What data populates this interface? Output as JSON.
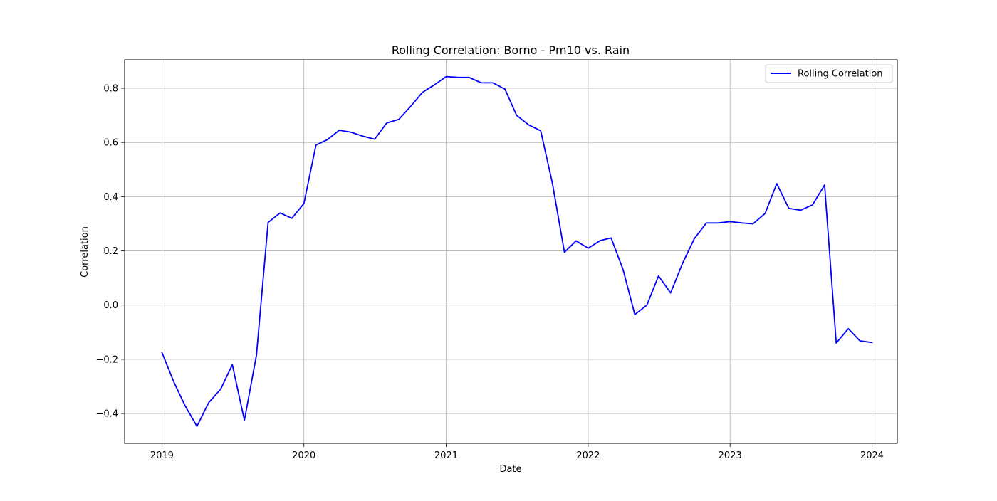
{
  "chart_data": {
    "type": "line",
    "title": "Rolling Correlation: Borno - Pm10 vs. Rain",
    "xlabel": "Date",
    "ylabel": "Correlation",
    "xlim": [
      "2018-09-27",
      "2024-03-06"
    ],
    "ylim": [
      -0.51,
      0.905
    ],
    "grid": true,
    "legend_position": "top-right",
    "x_ticks": [
      {
        "value": "2019-01-01",
        "label": "2019"
      },
      {
        "value": "2020-01-01",
        "label": "2020"
      },
      {
        "value": "2021-01-01",
        "label": "2021"
      },
      {
        "value": "2022-01-01",
        "label": "2022"
      },
      {
        "value": "2023-01-01",
        "label": "2023"
      },
      {
        "value": "2024-01-01",
        "label": "2024"
      }
    ],
    "y_ticks": [
      {
        "value": -0.4,
        "label": "−0.4"
      },
      {
        "value": -0.2,
        "label": "−0.2"
      },
      {
        "value": 0.0,
        "label": "0.0"
      },
      {
        "value": 0.2,
        "label": "0.2"
      },
      {
        "value": 0.4,
        "label": "0.4"
      },
      {
        "value": 0.6,
        "label": "0.6"
      },
      {
        "value": 0.8,
        "label": "0.8"
      }
    ],
    "series": [
      {
        "name": "Rolling Correlation",
        "color": "#0000ff",
        "x": [
          "2019-01",
          "2019-02",
          "2019-03",
          "2019-04",
          "2019-05",
          "2019-06",
          "2019-07",
          "2019-08",
          "2019-09",
          "2019-10",
          "2019-11",
          "2019-12",
          "2020-01",
          "2020-02",
          "2020-03",
          "2020-04",
          "2020-05",
          "2020-06",
          "2020-07",
          "2020-08",
          "2020-09",
          "2020-10",
          "2020-11",
          "2020-12",
          "2021-01",
          "2021-02",
          "2021-03",
          "2021-04",
          "2021-05",
          "2021-06",
          "2021-07",
          "2021-08",
          "2021-09",
          "2021-10",
          "2021-11",
          "2021-12",
          "2022-01",
          "2022-02",
          "2022-03",
          "2022-04",
          "2022-05",
          "2022-06",
          "2022-07",
          "2022-08",
          "2022-09",
          "2022-10",
          "2022-11",
          "2022-12",
          "2023-01",
          "2023-02",
          "2023-03",
          "2023-04",
          "2023-05",
          "2023-06",
          "2023-07",
          "2023-08",
          "2023-09",
          "2023-10",
          "2023-11",
          "2023-12",
          "2024-01"
        ],
        "y": [
          -0.175,
          -0.285,
          -0.37,
          -0.447,
          -0.36,
          -0.31,
          -0.22,
          -0.425,
          -0.185,
          0.305,
          0.34,
          0.32,
          0.375,
          0.59,
          0.61,
          0.645,
          0.638,
          0.623,
          0.612,
          0.672,
          0.685,
          0.732,
          0.785,
          0.812,
          0.843,
          0.84,
          0.84,
          0.82,
          0.82,
          0.797,
          0.7,
          0.665,
          0.643,
          0.45,
          0.195,
          0.237,
          0.21,
          0.238,
          0.248,
          0.13,
          -0.035,
          0.0,
          0.108,
          0.045,
          0.155,
          0.245,
          0.303,
          0.303,
          0.308,
          0.303,
          0.3,
          0.338,
          0.448,
          0.357,
          0.35,
          0.37,
          0.443,
          -0.14,
          -0.087,
          -0.132,
          -0.138
        ]
      }
    ]
  }
}
